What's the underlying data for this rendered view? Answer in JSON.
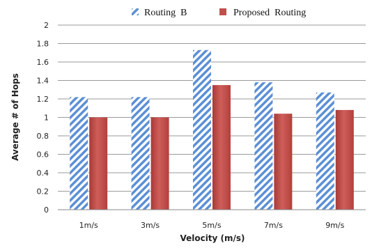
{
  "chart_data": {
    "type": "bar",
    "categories": [
      "1m/s",
      "3m/s",
      "5m/s",
      "7m/s",
      "9m/s"
    ],
    "series": [
      {
        "name": "Routing  B",
        "values": [
          1.22,
          1.22,
          1.73,
          1.38,
          1.27
        ],
        "color": "#5b8fd6",
        "pattern": "diagonal-stripes"
      },
      {
        "name": "Proposed  Routing",
        "values": [
          1.0,
          1.0,
          1.35,
          1.04,
          1.08
        ],
        "color": "#c0504d",
        "pattern": "solid"
      }
    ],
    "xlabel": "Velocity (m/s)",
    "ylabel": "Average # of Hops",
    "ylim": [
      0,
      2
    ],
    "yticks": [
      "0",
      "0.2",
      "0.4",
      "0.6",
      "0.8",
      "1",
      "1.2",
      "1.4",
      "1.6",
      "1.8",
      "2"
    ],
    "grid": true,
    "legend_position": "top"
  }
}
